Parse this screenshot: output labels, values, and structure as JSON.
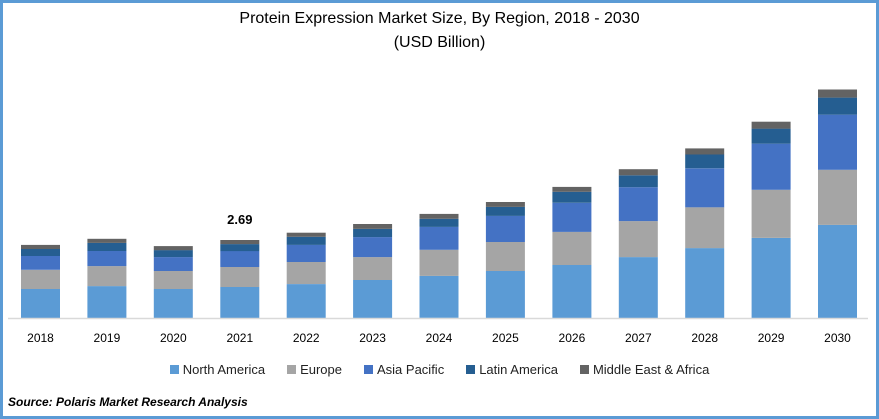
{
  "chart_data": {
    "type": "bar",
    "stacked": true,
    "title": "Protein Expression Market Size, By Region, 2018 - 2030",
    "subtitle": "(USD Billion)",
    "xlabel": "",
    "ylabel": "",
    "ylim": [
      0,
      8.5
    ],
    "grid": false,
    "legend_position": "bottom",
    "categories": [
      "2018",
      "2019",
      "2020",
      "2021",
      "2022",
      "2023",
      "2024",
      "2025",
      "2026",
      "2027",
      "2028",
      "2029",
      "2030"
    ],
    "series": [
      {
        "name": "North America",
        "color": "#5b9bd5",
        "values": [
          1.0,
          1.1,
          1.0,
          1.07,
          1.17,
          1.31,
          1.45,
          1.62,
          1.83,
          2.1,
          2.41,
          2.76,
          3.21
        ]
      },
      {
        "name": "Europe",
        "color": "#a5a5a5",
        "values": [
          0.66,
          0.69,
          0.62,
          0.69,
          0.76,
          0.79,
          0.9,
          1.0,
          1.14,
          1.24,
          1.41,
          1.66,
          1.9
        ]
      },
      {
        "name": "Asia Pacific",
        "color": "#4472c4",
        "values": [
          0.48,
          0.52,
          0.48,
          0.55,
          0.59,
          0.69,
          0.79,
          0.9,
          1.0,
          1.17,
          1.34,
          1.59,
          1.9
        ]
      },
      {
        "name": "Latin America",
        "color": "#255e91",
        "values": [
          0.24,
          0.28,
          0.24,
          0.24,
          0.28,
          0.28,
          0.28,
          0.31,
          0.38,
          0.41,
          0.48,
          0.52,
          0.59
        ]
      },
      {
        "name": "Middle East & Africa",
        "color": "#636363",
        "values": [
          0.14,
          0.14,
          0.14,
          0.14,
          0.14,
          0.17,
          0.17,
          0.17,
          0.17,
          0.21,
          0.21,
          0.24,
          0.28
        ]
      }
    ],
    "annotations": [
      {
        "category": "2021",
        "text": "2.69"
      }
    ]
  },
  "source": "Source: Polaris  Market Research Analysis"
}
